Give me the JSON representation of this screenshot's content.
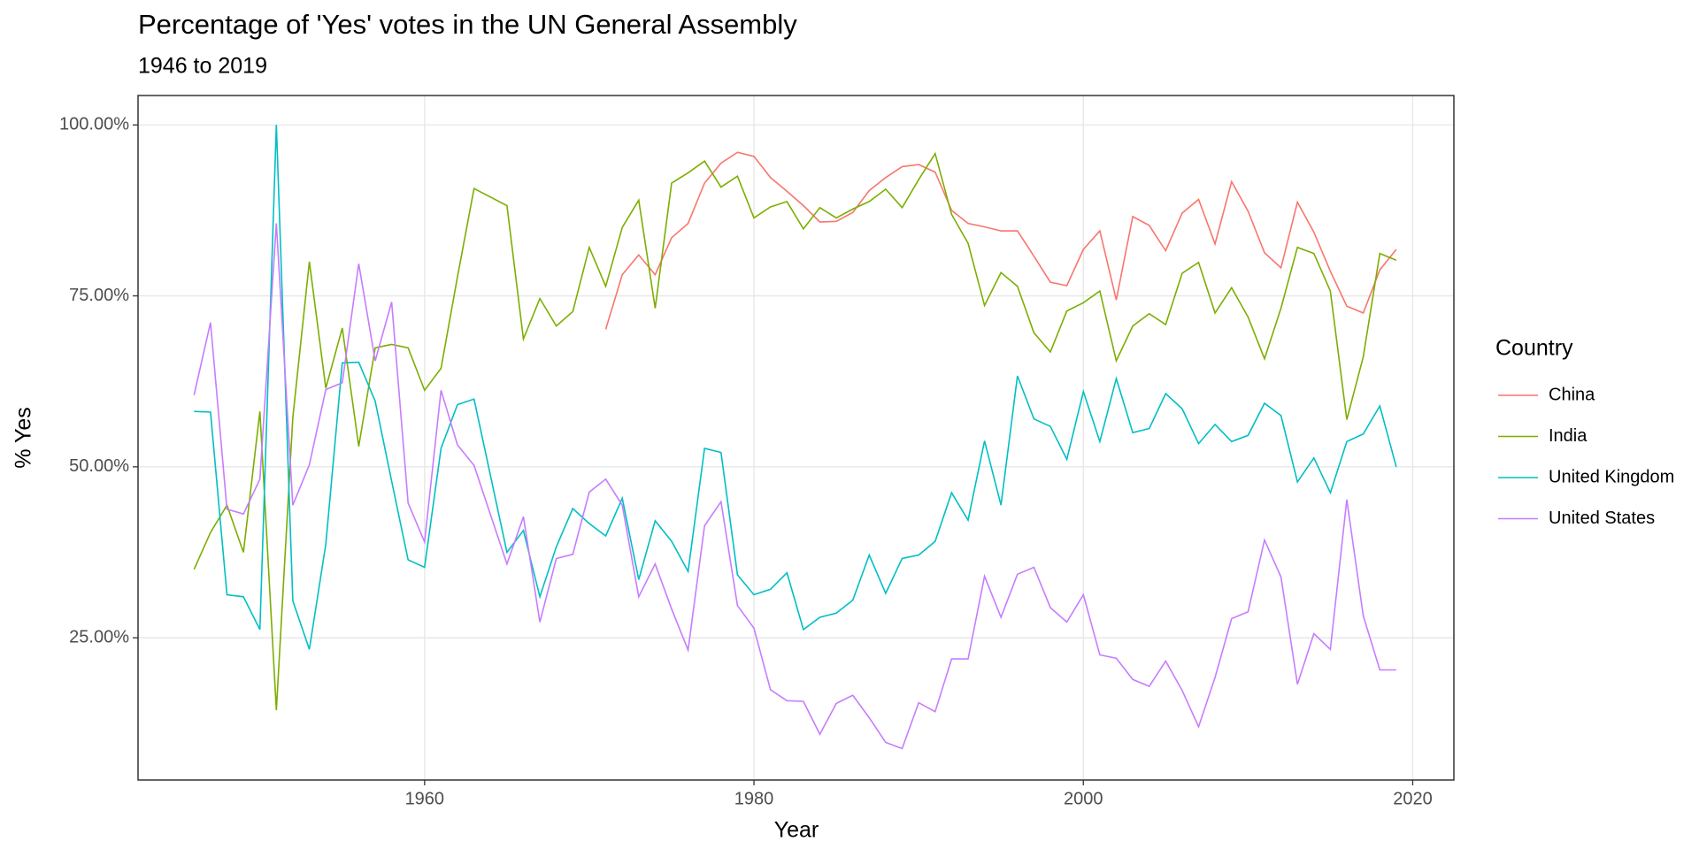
{
  "chart_data": {
    "type": "line",
    "title": "Percentage of 'Yes' votes in the UN General Assembly",
    "subtitle": "1946 to 2019",
    "xlabel": "Year",
    "ylabel": "% Yes",
    "legend_title": "Country",
    "legend_position": "right",
    "grid": true,
    "xlim": [
      1942.6,
      2022.5
    ],
    "xticks": [
      1960,
      1980,
      2000,
      2020
    ],
    "ylim": [
      4.2,
      104.3
    ],
    "yticks": [
      {
        "value": 25,
        "label": "25.00%"
      },
      {
        "value": 50,
        "label": "50.00%"
      },
      {
        "value": 75,
        "label": "75.00%"
      },
      {
        "value": 100,
        "label": "100.00%"
      }
    ],
    "x": [
      1946,
      1947,
      1948,
      1949,
      1950,
      1951,
      1952,
      1953,
      1954,
      1955,
      1956,
      1957,
      1958,
      1959,
      1960,
      1961,
      1962,
      1963,
      1965,
      1966,
      1967,
      1968,
      1969,
      1970,
      1971,
      1972,
      1973,
      1974,
      1975,
      1976,
      1977,
      1978,
      1979,
      1980,
      1981,
      1982,
      1983,
      1984,
      1985,
      1986,
      1987,
      1988,
      1989,
      1990,
      1991,
      1992,
      1993,
      1994,
      1995,
      1996,
      1997,
      1998,
      1999,
      2000,
      2001,
      2002,
      2003,
      2004,
      2005,
      2006,
      2007,
      2008,
      2009,
      2010,
      2011,
      2012,
      2013,
      2014,
      2015,
      2016,
      2017,
      2018,
      2019
    ],
    "series": [
      {
        "name": "China",
        "color": "#F8766D",
        "values": [
          null,
          null,
          null,
          null,
          null,
          null,
          null,
          null,
          null,
          null,
          null,
          null,
          null,
          null,
          null,
          null,
          null,
          null,
          null,
          null,
          null,
          null,
          null,
          null,
          70.1,
          78.1,
          81.0,
          78.1,
          83.5,
          85.6,
          91.5,
          94.4,
          96.0,
          95.4,
          92.3,
          90.3,
          88.2,
          85.8,
          85.9,
          87.2,
          90.4,
          92.3,
          93.9,
          94.2,
          93.1,
          87.5,
          85.6,
          85.1,
          84.5,
          84.5,
          80.8,
          77.0,
          76.5,
          81.8,
          84.5,
          74.4,
          86.6,
          85.3,
          81.6,
          87.1,
          89.1,
          82.6,
          91.7,
          87.4,
          81.3,
          79.1,
          88.7,
          84.3,
          78.6,
          73.5,
          72.5,
          78.8,
          81.8
        ]
      },
      {
        "name": "India",
        "color": "#7CAE00",
        "values": [
          35.0,
          40.4,
          44.4,
          37.5,
          58.1,
          14.4,
          57.2,
          80.0,
          61.5,
          70.3,
          53.0,
          67.4,
          67.9,
          67.4,
          61.2,
          64.4,
          77.8,
          90.7,
          88.2,
          68.7,
          74.6,
          70.6,
          72.7,
          82.1,
          76.4,
          85.0,
          89.0,
          73.2,
          91.5,
          93.0,
          94.7,
          90.9,
          92.5,
          86.4,
          88.0,
          88.8,
          84.8,
          87.9,
          86.4,
          87.7,
          88.8,
          90.6,
          87.9,
          92.0,
          95.8,
          86.9,
          82.7,
          73.6,
          78.4,
          76.4,
          69.6,
          66.8,
          72.8,
          74.0,
          75.7,
          65.5,
          70.6,
          72.4,
          70.8,
          78.3,
          79.9,
          72.5,
          76.2,
          71.9,
          65.8,
          73.2,
          82.1,
          81.2,
          75.7,
          56.9,
          66.1,
          81.2,
          80.2
        ]
      },
      {
        "name": "United Kingdom",
        "color": "#00BFC4",
        "values": [
          58.1,
          58.0,
          31.3,
          31.0,
          26.2,
          100,
          30.4,
          23.3,
          38.7,
          65.2,
          65.3,
          59.6,
          47.9,
          36.4,
          35.3,
          52.7,
          59.1,
          59.9,
          37.5,
          40.7,
          31.0,
          38.3,
          43.9,
          41.7,
          39.9,
          45.4,
          33.5,
          42.1,
          39.1,
          34.7,
          52.7,
          52.1,
          34.2,
          31.3,
          32.1,
          34.5,
          26.2,
          28.0,
          28.6,
          30.5,
          37.1,
          31.5,
          36.6,
          37.1,
          39.1,
          46.2,
          42.2,
          53.8,
          44.4,
          63.3,
          57.0,
          55.9,
          51.1,
          61.0,
          53.7,
          62.9,
          55.0,
          55.6,
          60.7,
          58.5,
          53.4,
          56.2,
          53.7,
          54.6,
          59.3,
          57.5,
          47.8,
          51.3,
          46.2,
          53.7,
          54.8,
          58.9,
          50.0
        ]
      },
      {
        "name": "United States",
        "color": "#C77CFF",
        "values": [
          60.5,
          71.1,
          43.8,
          43.1,
          48.2,
          85.6,
          44.4,
          50.3,
          61.3,
          62.3,
          79.7,
          65.5,
          74.1,
          44.7,
          39.0,
          61.2,
          53.2,
          50.2,
          35.8,
          42.7,
          27.3,
          36.6,
          37.2,
          46.3,
          48.2,
          44.4,
          31.0,
          35.8,
          29.2,
          23.2,
          41.4,
          44.9,
          29.7,
          26.4,
          17.4,
          15.8,
          15.7,
          10.9,
          15.4,
          16.6,
          13.3,
          9.7,
          8.8,
          15.5,
          14.2,
          21.9,
          21.9,
          34.0,
          28.0,
          34.3,
          35.3,
          29.4,
          27.3,
          31.3,
          22.5,
          22.0,
          18.9,
          17.9,
          21.6,
          17.3,
          12.0,
          19.2,
          27.8,
          28.8,
          39.3,
          33.9,
          18.2,
          25.6,
          23.3,
          45.2,
          28.2,
          20.3,
          20.3
        ]
      }
    ]
  }
}
